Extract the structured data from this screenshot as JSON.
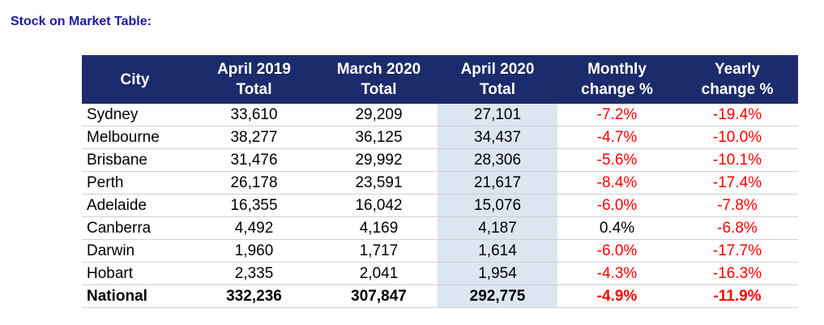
{
  "title": "Stock on Market Table:",
  "table": {
    "header": [
      [
        "City"
      ],
      [
        "April 2019",
        "Total"
      ],
      [
        "March 2020",
        "Total"
      ],
      [
        "April 2020",
        "Total"
      ],
      [
        "Monthly",
        "change %"
      ],
      [
        "Yearly",
        "change %"
      ]
    ],
    "rows": [
      [
        "Sydney",
        "33,610",
        "29,209",
        "27,101",
        "-7.2%",
        "-19.4%"
      ],
      [
        "Melbourne",
        "38,277",
        "36,125",
        "34,437",
        "-4.7%",
        "-10.0%"
      ],
      [
        "Brisbane",
        "31,476",
        "29,992",
        "28,306",
        "-5.6%",
        "-10.1%"
      ],
      [
        "Perth",
        "26,178",
        "23,591",
        "21,617",
        "-8.4%",
        "-17.4%"
      ],
      [
        "Adelaide",
        "16,355",
        "16,042",
        "15,076",
        "-6.0%",
        "-7.8%"
      ],
      [
        "Canberra",
        "4,492",
        "4,169",
        "4,187",
        "0.4%",
        "-6.8%"
      ],
      [
        "Darwin",
        "1,960",
        "1,717",
        "1,614",
        "-6.0%",
        "-17.7%"
      ],
      [
        "Hobart",
        "2,335",
        "2,041",
        "1,954",
        "-4.3%",
        "-16.3%"
      ]
    ],
    "total": [
      "National",
      "332,236",
      "307,847",
      "292,775",
      "-4.9%",
      "-11.9%"
    ]
  }
}
